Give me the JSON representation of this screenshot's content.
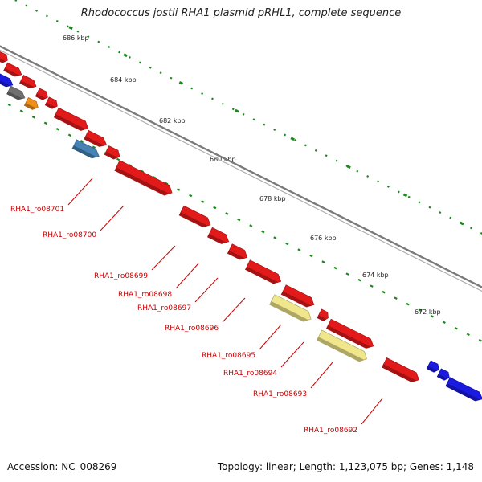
{
  "title": "Rhodococcus jostii RHA1 plasmid pRHL1, complete sequence",
  "footer": {
    "accession": "Accession: NC_008269",
    "summary": "Topology: linear; Length: 1,123,075 bp; Genes: 1,148"
  },
  "scale_labels": [
    "686 kbp",
    "684 kbp",
    "682 kbp",
    "680 kbp",
    "678 kbp",
    "676 kbp",
    "674 kbp",
    "672 kbp"
  ],
  "gene_labels": [
    "RHA1_ro08701",
    "RHA1_ro08700",
    "RHA1_ro08699",
    "RHA1_ro08698",
    "RHA1_ro08697",
    "RHA1_ro08696",
    "RHA1_ro08695",
    "RHA1_ro08694",
    "RHA1_ro08693",
    "RHA1_ro08692"
  ],
  "colors": {
    "backbone": "#7a7a7a",
    "gene_red": "#e31a1a",
    "gene_blue": "#1a1ae0",
    "gene_gray": "#707070",
    "gene_orange": "#f0901a",
    "gene_steelblue": "#4682b4",
    "gene_khaki": "#f0e68c",
    "tick_green": "#1a8a1a",
    "label_red": "#cc0000"
  }
}
